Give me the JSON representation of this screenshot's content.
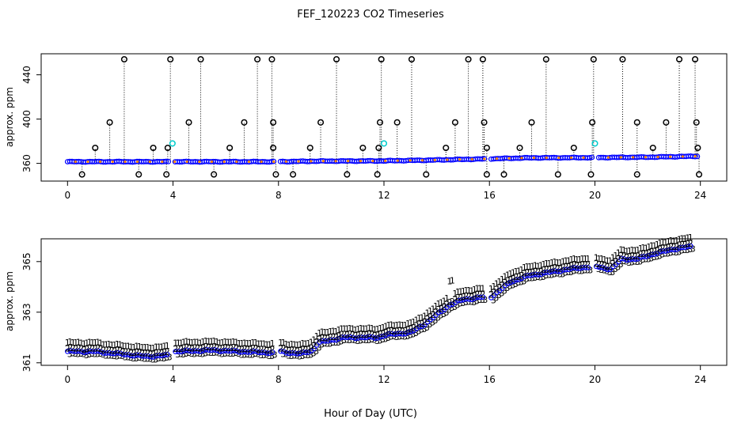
{
  "figure": {
    "title": "FEF_120223  CO2 Timeseries",
    "xlabel": "Hour of Day (UTC)"
  },
  "chart_data": [
    {
      "type": "scatter",
      "id": "top",
      "ylabel": "approx. ppm",
      "xlim": [
        -1,
        25
      ],
      "ylim": [
        344,
        459
      ],
      "xticks": [
        0,
        4,
        8,
        12,
        16,
        20,
        24
      ],
      "yticks": [
        360,
        400,
        440
      ],
      "colors": {
        "spike": "#000000",
        "flag": "#00cccc",
        "main": "#0000ff",
        "trace": "#ff8800"
      },
      "baseline": [
        [
          0,
          361.5
        ],
        [
          3.8,
          361.5
        ],
        [
          7.8,
          361.5
        ],
        [
          9.5,
          362.0
        ],
        [
          11.8,
          362.2
        ],
        [
          13.5,
          362.8
        ],
        [
          15.8,
          364.0
        ],
        [
          17.5,
          365.0
        ],
        [
          19.9,
          365.2
        ],
        [
          22.0,
          365.6
        ],
        [
          23.8,
          366.4
        ]
      ],
      "gaps": [
        [
          3.9,
          4.05
        ],
        [
          7.85,
          8.0
        ],
        [
          15.85,
          16.0
        ],
        [
          19.95,
          20.1
        ]
      ],
      "spikes_high": [
        2.15,
        3.9,
        5.05,
        7.2,
        7.75,
        10.2,
        11.9,
        13.05,
        15.2,
        15.75,
        18.15,
        19.95,
        21.05,
        23.2,
        23.8
      ],
      "spikes_mid": [
        1.6,
        4.6,
        6.7,
        7.8,
        9.6,
        11.85,
        12.5,
        14.7,
        15.8,
        17.6,
        19.9,
        21.6,
        22.7,
        23.85
      ],
      "spikes_low": [
        1.05,
        3.25,
        3.8,
        6.15,
        7.8,
        9.2,
        11.2,
        11.8,
        14.35,
        15.9,
        17.15,
        19.2,
        22.2,
        23.9
      ],
      "dips": [
        0.55,
        2.7,
        3.75,
        5.55,
        7.9,
        8.55,
        10.6,
        11.75,
        13.6,
        15.9,
        16.55,
        18.6,
        19.85,
        21.6,
        23.95
      ],
      "flag_points": [
        [
          3.98,
          378
        ],
        [
          12.0,
          378
        ],
        [
          20.0,
          378
        ]
      ],
      "spike_levels": {
        "high": 454,
        "mid": 397,
        "low": 374,
        "dip": 350
      }
    },
    {
      "type": "scatter",
      "id": "bottom",
      "ylabel": "approx. ppm",
      "xlim": [
        -1,
        25
      ],
      "ylim": [
        360.9,
        365.9
      ],
      "xticks": [
        0,
        4,
        8,
        12,
        16,
        20,
        24
      ],
      "yticks": [
        361,
        363,
        365
      ],
      "series": [
        {
          "name": "1",
          "marker": "1",
          "color": "#ff0000",
          "offset": 0.35
        },
        {
          "name": "2",
          "marker": "2",
          "color": "#00bb00",
          "offset": 0.12
        },
        {
          "name": "3",
          "marker": "3",
          "color": "#0000ff",
          "offset": -0.1
        },
        {
          "name": "o",
          "marker": "o",
          "color": "#0000ff",
          "offset": 0.0
        }
      ],
      "baseline": [
        [
          0,
          361.45
        ],
        [
          1.0,
          361.45
        ],
        [
          2.0,
          361.35
        ],
        [
          3.0,
          361.25
        ],
        [
          3.8,
          361.3
        ],
        [
          4.1,
          361.45
        ],
        [
          5.5,
          361.5
        ],
        [
          6.5,
          361.45
        ],
        [
          7.8,
          361.4
        ],
        [
          8.05,
          361.45
        ],
        [
          8.8,
          361.35
        ],
        [
          9.3,
          361.5
        ],
        [
          9.5,
          361.8
        ],
        [
          10.5,
          362.0
        ],
        [
          11.8,
          362.0
        ],
        [
          12.05,
          362.1
        ],
        [
          13.0,
          362.2
        ],
        [
          13.5,
          362.5
        ],
        [
          14.0,
          362.9
        ],
        [
          14.5,
          363.3
        ],
        [
          15.0,
          363.5
        ],
        [
          15.8,
          363.6
        ],
        [
          16.05,
          363.6
        ],
        [
          16.8,
          364.2
        ],
        [
          17.5,
          364.45
        ],
        [
          19.0,
          364.7
        ],
        [
          19.8,
          364.8
        ],
        [
          20.05,
          364.8
        ],
        [
          20.6,
          364.7
        ],
        [
          21.0,
          365.1
        ],
        [
          21.6,
          365.1
        ],
        [
          22.2,
          365.3
        ],
        [
          23.0,
          365.5
        ],
        [
          23.7,
          365.6
        ]
      ],
      "gaps": [
        [
          3.85,
          4.05
        ],
        [
          7.8,
          8.0
        ],
        [
          12.0,
          12.05
        ],
        [
          15.8,
          16.05
        ],
        [
          19.8,
          20.05
        ]
      ],
      "sample_step": 0.105
    }
  ]
}
